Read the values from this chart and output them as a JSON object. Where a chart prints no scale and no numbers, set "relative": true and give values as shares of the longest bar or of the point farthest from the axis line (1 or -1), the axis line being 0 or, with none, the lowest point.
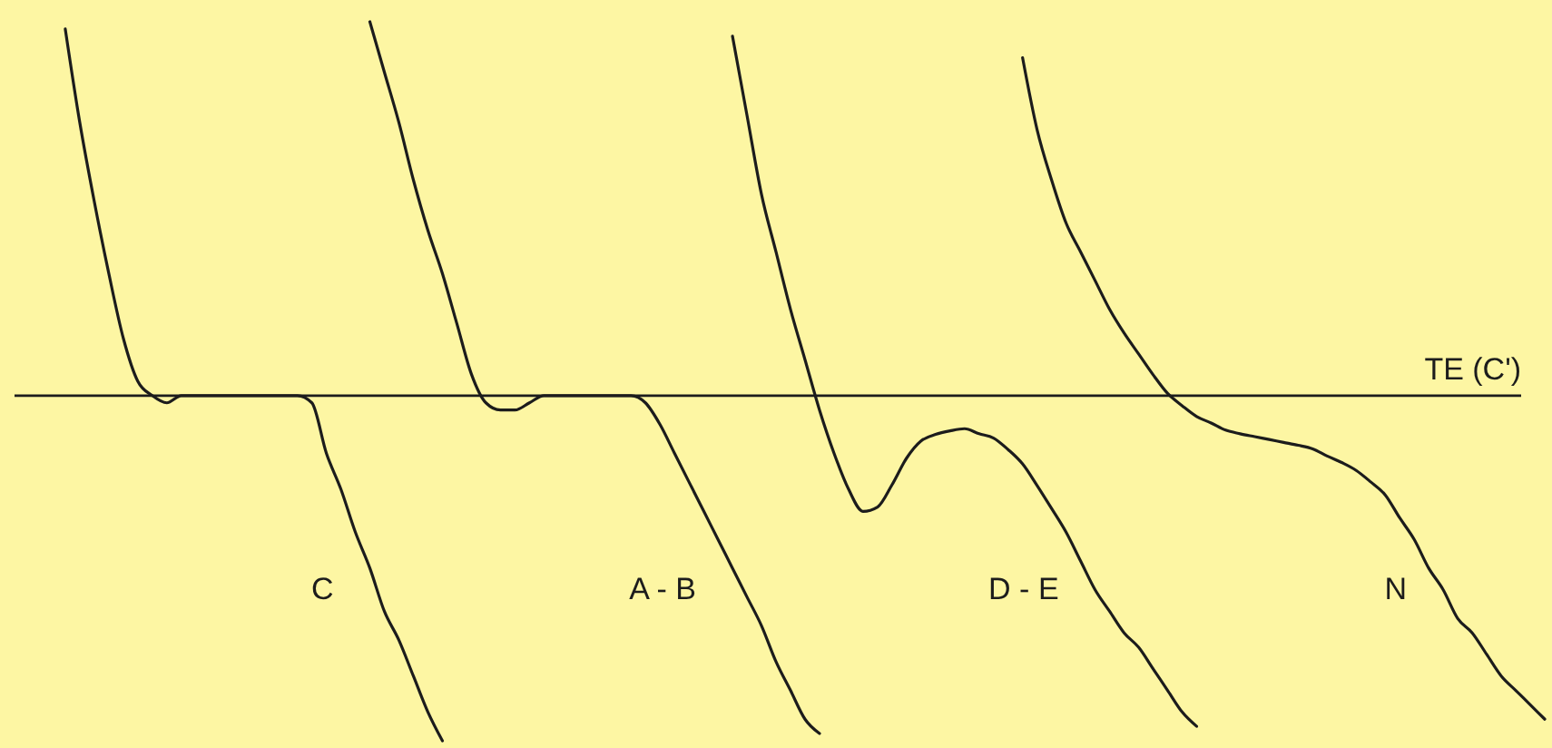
{
  "chart_data": {
    "type": "line",
    "relative": true,
    "line_style": "solid",
    "categories": [
      null,
      null,
      null,
      null,
      null,
      null,
      null,
      null,
      null,
      null,
      null,
      null,
      null,
      null,
      null,
      null,
      null,
      null,
      null,
      null,
      null,
      null,
      null,
      null,
      null,
      null,
      null,
      null,
      null,
      null,
      null,
      null,
      null,
      null,
      null,
      null,
      null,
      null,
      null,
      null,
      null,
      null,
      null,
      null,
      null,
      null,
      null,
      null,
      null,
      null,
      null,
      null,
      null,
      null,
      null,
      null,
      null,
      null,
      null,
      null,
      null,
      null,
      null,
      null,
      null,
      null,
      null,
      null,
      null,
      null,
      null,
      null,
      null,
      null,
      null,
      null,
      null,
      null,
      null,
      null,
      null,
      null,
      null,
      null,
      null,
      null,
      null,
      null,
      null,
      null,
      null,
      null,
      null,
      null,
      null,
      null,
      null,
      null,
      null,
      null,
      null,
      null,
      null,
      null,
      null,
      null,
      null
    ],
    "series": [
      {
        "name": "C",
        "color": "#1c1c1c",
        "values": [
          null,
          null,
          null,
          null,
          0.99,
          0.86,
          0.75,
          0.65,
          0.56,
          0.5,
          0.48,
          0.47,
          0.48,
          0.48,
          0.48,
          0.48,
          0.48,
          0.48,
          0.48,
          0.48,
          0.48,
          0.47,
          0.4,
          0.35,
          0.29,
          0.24,
          0.18,
          0.14,
          0.09,
          0.04,
          0,
          null,
          null,
          null,
          null,
          null,
          null,
          null,
          null,
          null,
          null,
          null,
          null,
          null,
          null,
          null,
          null,
          null,
          null,
          null,
          null,
          null,
          null,
          null,
          null,
          null,
          null,
          null,
          null,
          null,
          null,
          null,
          null,
          null,
          null,
          null,
          null,
          null,
          null,
          null,
          null,
          null,
          null,
          null,
          null,
          null,
          null,
          null,
          null,
          null,
          null,
          null,
          null,
          null,
          null,
          null,
          null,
          null,
          null,
          null,
          null,
          null,
          null,
          null,
          null,
          null,
          null,
          null,
          null,
          null,
          null,
          null,
          null,
          null,
          null,
          null,
          null
        ]
      },
      {
        "name": "A - B",
        "color": "#1c1c1c",
        "values": [
          null,
          null,
          null,
          null,
          null,
          null,
          null,
          null,
          null,
          null,
          null,
          null,
          null,
          null,
          null,
          null,
          null,
          null,
          null,
          null,
          null,
          null,
          null,
          null,
          null,
          1,
          0.93,
          0.86,
          0.78,
          0.71,
          0.65,
          0.58,
          0.51,
          0.47,
          0.46,
          0.46,
          0.47,
          0.48,
          0.48,
          0.48,
          0.48,
          0.48,
          0.48,
          0.48,
          0.47,
          0.44,
          0.4,
          0.36,
          0.32,
          0.28,
          0.24,
          0.2,
          0.16,
          0.11,
          0.07,
          0.03,
          0.01,
          null,
          null,
          null,
          null,
          null,
          null,
          null,
          null,
          null,
          null,
          null,
          null,
          null,
          null,
          null,
          null,
          null,
          null,
          null,
          null,
          null,
          null,
          null,
          null,
          null,
          null,
          null,
          null,
          null,
          null,
          null,
          null,
          null,
          null,
          null,
          null,
          null,
          null,
          null,
          null,
          null,
          null,
          null,
          null,
          null,
          null,
          null,
          null,
          null,
          null
        ]
      },
      {
        "name": "D - E",
        "color": "#1c1c1c",
        "values": [
          null,
          null,
          null,
          null,
          null,
          null,
          null,
          null,
          null,
          null,
          null,
          null,
          null,
          null,
          null,
          null,
          null,
          null,
          null,
          null,
          null,
          null,
          null,
          null,
          null,
          null,
          null,
          null,
          null,
          null,
          null,
          null,
          null,
          null,
          null,
          null,
          null,
          null,
          null,
          null,
          null,
          null,
          null,
          null,
          null,
          null,
          null,
          null,
          null,
          null,
          0.98,
          0.87,
          0.76,
          0.68,
          0.6,
          0.53,
          0.46,
          0.4,
          0.35,
          0.319,
          0.325,
          0.356,
          0.393,
          0.417,
          0.426,
          0.431,
          0.434,
          0.427,
          0.421,
          0.405,
          0.385,
          0.355,
          0.323,
          0.29,
          0.25,
          0.21,
          0.18,
          0.15,
          0.13,
          0.1,
          0.07,
          0.04,
          0.02,
          null,
          null,
          null,
          null,
          null,
          null,
          null,
          null,
          null,
          null,
          null,
          null,
          null,
          null,
          null,
          null,
          null,
          null,
          null,
          null,
          null,
          null,
          null,
          null
        ]
      },
      {
        "name": "N",
        "color": "#1c1c1c",
        "values": [
          null,
          null,
          null,
          null,
          null,
          null,
          null,
          null,
          null,
          null,
          null,
          null,
          null,
          null,
          null,
          null,
          null,
          null,
          null,
          null,
          null,
          null,
          null,
          null,
          null,
          null,
          null,
          null,
          null,
          null,
          null,
          null,
          null,
          null,
          null,
          null,
          null,
          null,
          null,
          null,
          null,
          null,
          null,
          null,
          null,
          null,
          null,
          null,
          null,
          null,
          null,
          null,
          null,
          null,
          null,
          null,
          null,
          null,
          null,
          null,
          null,
          null,
          null,
          null,
          null,
          null,
          null,
          null,
          null,
          null,
          0.95,
          0.85,
          0.78,
          0.72,
          0.68,
          0.64,
          0.6,
          0.567,
          0.538,
          0.509,
          0.483,
          0.466,
          0.451,
          0.442,
          0.432,
          0.427,
          0.423,
          0.419,
          0.415,
          0.411,
          0.406,
          0.396,
          0.387,
          0.376,
          0.36,
          0.342,
          0.31,
          0.28,
          0.24,
          0.21,
          0.17,
          0.15,
          0.12,
          0.09,
          0.07,
          0.05,
          0.03
        ]
      }
    ],
    "ref_lines": [
      {
        "axis": "y",
        "value": 0.48,
        "label": "TE (C')",
        "color": "#1c1c1c"
      }
    ]
  }
}
